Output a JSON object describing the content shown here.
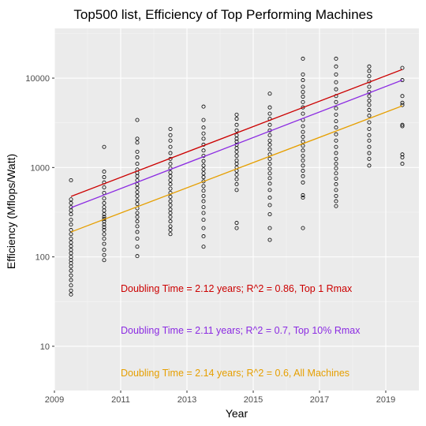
{
  "chart_data": {
    "type": "scatter",
    "title": "Top500 list, Efficiency of Top Performing Machines",
    "xlabel": "Year",
    "ylabel": "Efficiency (Mflops/Watt)",
    "x_scale": "linear",
    "y_scale": "log10",
    "xlim": [
      2009,
      2020
    ],
    "ylim": [
      3.2,
      36000
    ],
    "x_ticks": [
      2009,
      2011,
      2013,
      2015,
      2017,
      2019
    ],
    "x_tick_labels": [
      "2009",
      "2011",
      "2013",
      "2015",
      "2017",
      "2019"
    ],
    "y_ticks": [
      10,
      100,
      1000,
      10000
    ],
    "y_tick_labels": [
      "10",
      "100",
      "1000",
      "10000"
    ],
    "grid": true,
    "legend": "none",
    "background": "#ebebeb",
    "point_color": "#000000",
    "point_columns": [
      {
        "x": 2009.5,
        "values": [
          38,
          42,
          48,
          55,
          62,
          70,
          78,
          85,
          92,
          100,
          110,
          120,
          132,
          145,
          160,
          180,
          200,
          230,
          260,
          300,
          330,
          360,
          400,
          440,
          720
        ]
      },
      {
        "x": 2010.5,
        "values": [
          92,
          105,
          120,
          140,
          160,
          180,
          200,
          215,
          230,
          250,
          265,
          280,
          300,
          330,
          360,
          400,
          450,
          520,
          600,
          680,
          780,
          900,
          1700
        ]
      },
      {
        "x": 2011.5,
        "values": [
          102,
          130,
          160,
          190,
          220,
          250,
          280,
          310,
          350,
          390,
          430,
          480,
          530,
          590,
          650,
          720,
          800,
          870,
          950,
          1100,
          1300,
          1500,
          1900,
          2100,
          3400
        ]
      },
      {
        "x": 2012.5,
        "values": [
          180,
          200,
          220,
          250,
          280,
          310,
          340,
          380,
          420,
          470,
          520,
          580,
          650,
          720,
          800,
          880,
          980,
          1100,
          1250,
          1450,
          1700,
          2000,
          2300,
          2700
        ]
      },
      {
        "x": 2013.5,
        "values": [
          130,
          170,
          210,
          260,
          310,
          360,
          420,
          480,
          550,
          620,
          700,
          780,
          860,
          950,
          1050,
          1180,
          1350,
          1550,
          1800,
          2100,
          2400,
          2800,
          3400,
          4800
        ]
      },
      {
        "x": 2014.5,
        "values": [
          210,
          240,
          560,
          650,
          740,
          830,
          920,
          1000,
          1100,
          1200,
          1350,
          1500,
          1650,
          1800,
          1950,
          2100,
          2300,
          2600,
          3000,
          3500,
          3900
        ]
      },
      {
        "x": 2015.5,
        "values": [
          155,
          210,
          300,
          380,
          460,
          560,
          660,
          760,
          860,
          970,
          1100,
          1250,
          1400,
          1600,
          1800,
          2000,
          2300,
          2600,
          3000,
          3500,
          4000,
          4700,
          6700
        ]
      },
      {
        "x": 2016.5,
        "values": [
          210,
          460,
          490,
          680,
          800,
          920,
          1050,
          1200,
          1350,
          1550,
          1750,
          1950,
          2200,
          2500,
          2900,
          3400,
          4000,
          4700,
          5400,
          6200,
          7000,
          8000,
          9500,
          11000,
          16500
        ]
      },
      {
        "x": 2017.5,
        "values": [
          370,
          420,
          480,
          560,
          650,
          750,
          860,
          980,
          1100,
          1250,
          1450,
          1700,
          2000,
          2350,
          2800,
          3300,
          3900,
          4600,
          5400,
          6300,
          7500,
          9000,
          11000,
          13500,
          16500
        ]
      },
      {
        "x": 2018.5,
        "values": [
          1050,
          1250,
          1450,
          1700,
          2000,
          2300,
          2700,
          3200,
          3800,
          4400,
          5000,
          5600,
          6300,
          7000,
          8000,
          9200,
          10500,
          12000,
          13500
        ]
      },
      {
        "x": 2019.5,
        "values": [
          1100,
          1300,
          1400,
          2900,
          3000,
          5000,
          5300,
          6300,
          9500,
          13000
        ]
      }
    ],
    "series": [
      {
        "name": "Top 1 Rmax",
        "color": "#cc0000",
        "x": [
          2009.5,
          2019.5
        ],
        "y": [
          475,
          12500
        ]
      },
      {
        "name": "Top 10% Rmax",
        "color": "#8b2be2",
        "x": [
          2009.5,
          2019.5
        ],
        "y": [
          355,
          9500
        ]
      },
      {
        "name": "All Machines",
        "color": "#e69f00",
        "x": [
          2009.5,
          2019.5
        ],
        "y": [
          190,
          4900
        ]
      }
    ],
    "annotations": [
      {
        "text": "Doubling Time = 2.12 years; R^2 = 0.86, Top 1 Rmax",
        "color": "#cc0000",
        "x": 2011,
        "y": 44
      },
      {
        "text": "Doubling Time = 2.11 years; R^2 = 0.7, Top 10% Rmax",
        "color": "#8b2be2",
        "x": 2011,
        "y": 15
      },
      {
        "text": "Doubling Time = 2.14 years; R^2 = 0.6, All Machines",
        "color": "#e69f00",
        "x": 2011,
        "y": 5
      }
    ]
  }
}
